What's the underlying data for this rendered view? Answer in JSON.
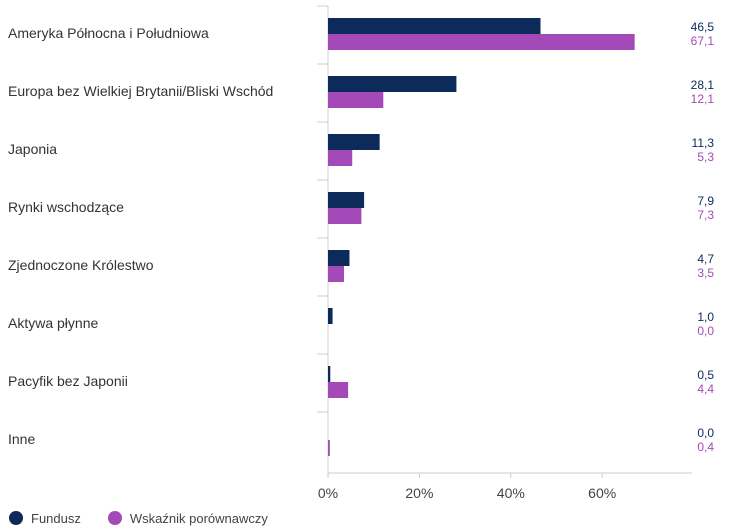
{
  "chart_data": {
    "type": "bar",
    "orientation": "horizontal",
    "categories": [
      "Ameryka Północna i Południowa",
      "Europa bez Wielkiej Brytanii/Bliski Wschód",
      "Japonia",
      "Rynki wschodzące",
      "Zjednoczone Królestwo",
      "Aktywa płynne",
      "Pacyfik bez Japonii",
      "Inne"
    ],
    "series": [
      {
        "name": "Fundusz",
        "color": "#0c2a5a",
        "values": [
          46.5,
          28.1,
          11.3,
          7.9,
          4.7,
          1.0,
          0.5,
          0.0
        ],
        "labels": [
          "46,5",
          "28,1",
          "11,3",
          "7,9",
          "4,7",
          "1,0",
          "0,5",
          "0,0"
        ]
      },
      {
        "name": "Wskaźnik porównawczy",
        "color": "#a44ab8",
        "values": [
          67.1,
          12.1,
          5.3,
          7.3,
          3.5,
          0.0,
          4.4,
          0.4
        ],
        "labels": [
          "67,1",
          "12,1",
          "5,3",
          "7,3",
          "3,5",
          "0,0",
          "4,4",
          "0,4"
        ]
      }
    ],
    "xlim": [
      0,
      80
    ],
    "x_ticks": [
      0,
      20,
      40,
      60
    ],
    "x_tick_labels": [
      "0%",
      "20%",
      "40%",
      "60%"
    ],
    "grid": false,
    "legend_position": "bottom-left"
  }
}
